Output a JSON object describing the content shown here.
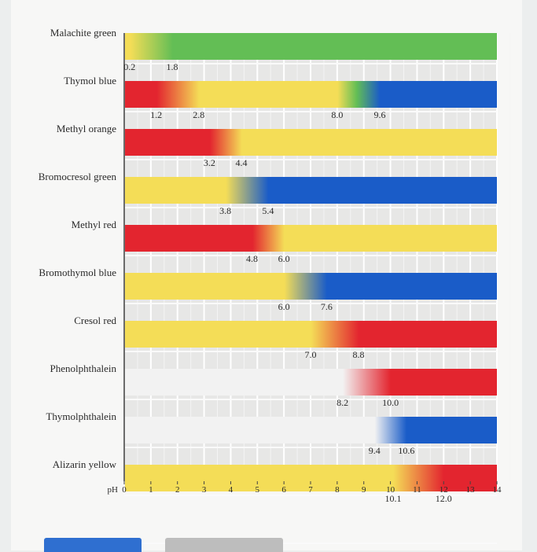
{
  "chart_data": {
    "type": "bar",
    "title": "",
    "xlabel": "pH",
    "xlim": [
      0,
      14
    ],
    "x_ticks": [
      "0",
      "1",
      "2",
      "3",
      "4",
      "5",
      "6",
      "7",
      "8",
      "9",
      "10",
      "11",
      "12",
      "13",
      "14"
    ],
    "grid": true,
    "colors": {
      "red": "#e3252f",
      "yellow": "#f4dd57",
      "green": "#63be55",
      "blue": "#1a5cc8",
      "colorless": "#f2f2f2"
    },
    "indicators": [
      {
        "name": "Malachite green",
        "low_color": "yellow",
        "high_color": "green",
        "range": [
          0.2,
          1.8
        ],
        "labels": [
          "0.2",
          "1.8"
        ]
      },
      {
        "name": "Thymol blue",
        "colors": [
          "red",
          "yellow",
          "blue"
        ],
        "range": [
          1.2,
          2.8
        ],
        "range2": [
          8.0,
          9.6
        ],
        "labels": [
          "1.2",
          "2.8"
        ],
        "labels2": [
          "8.0",
          "9.6"
        ]
      },
      {
        "name": "Methyl orange",
        "low_color": "red",
        "high_color": "yellow",
        "range": [
          3.2,
          4.4
        ],
        "labels": [
          "3.2",
          "4.4"
        ]
      },
      {
        "name": "Bromocresol green",
        "low_color": "yellow",
        "high_color": "blue",
        "range": [
          3.8,
          5.4
        ],
        "labels": [
          "3.8",
          "5.4"
        ]
      },
      {
        "name": "Methyl red",
        "low_color": "red",
        "high_color": "yellow",
        "range": [
          4.8,
          6.0
        ],
        "labels": [
          "4.8",
          "6.0"
        ]
      },
      {
        "name": "Bromothymol blue",
        "low_color": "yellow",
        "high_color": "blue",
        "range": [
          6.0,
          7.6
        ],
        "labels": [
          "6.0",
          "7.6"
        ]
      },
      {
        "name": "Cresol red",
        "low_color": "yellow",
        "high_color": "red",
        "range": [
          7.0,
          8.8
        ],
        "labels": [
          "7.0",
          "8.8"
        ]
      },
      {
        "name": "Phenolphthalein",
        "low_color": "colorless",
        "high_color": "red",
        "range": [
          8.2,
          10.0
        ],
        "labels": [
          "8.2",
          "10.0"
        ]
      },
      {
        "name": "Thymolphthalein",
        "low_color": "colorless",
        "high_color": "blue",
        "range": [
          9.4,
          10.6
        ],
        "labels": [
          "9.4",
          "10.6"
        ]
      },
      {
        "name": "Alizarin yellow",
        "low_color": "yellow",
        "high_color": "red",
        "range": [
          10.1,
          12.0
        ],
        "labels": [
          "10.1",
          "12.0"
        ]
      }
    ]
  }
}
